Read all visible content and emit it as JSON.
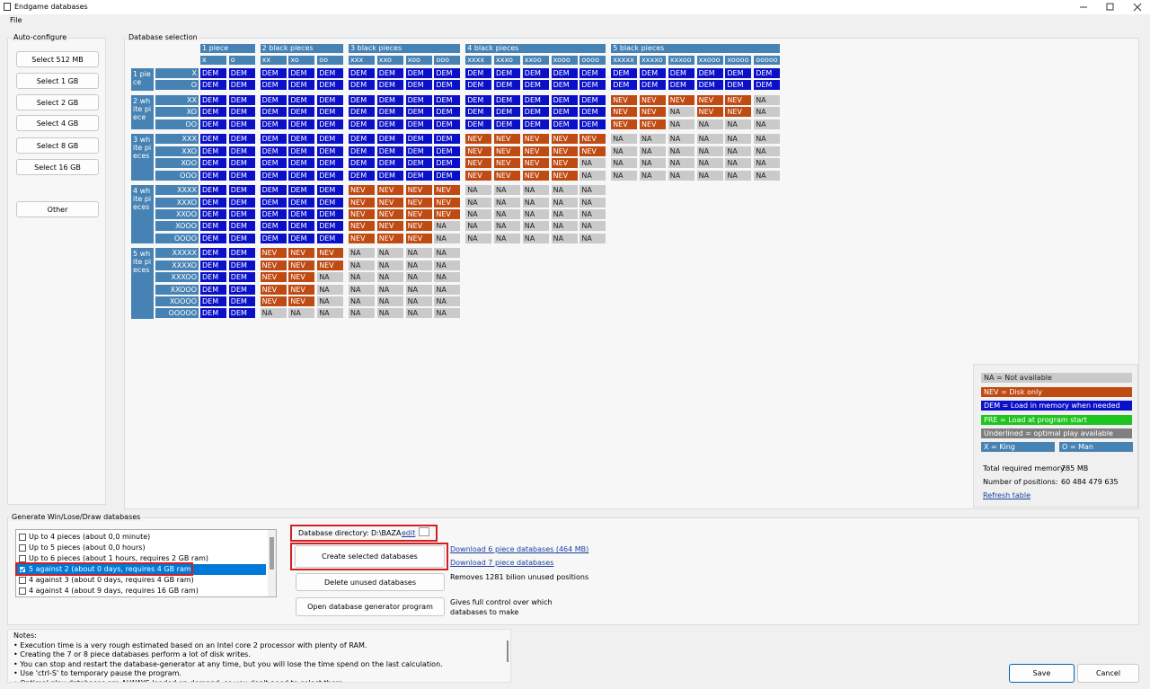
{
  "window": {
    "title": "Endgame databases"
  },
  "menu": [
    "File"
  ],
  "auto_configure": {
    "title": "Auto-configure",
    "buttons": [
      "Select 512 MB",
      "Select 1 GB",
      "Select 2 GB",
      "Select 4 GB",
      "Select 8 GB",
      "Select 16 GB",
      "Other"
    ]
  },
  "database_selection": {
    "title": "Database selection",
    "column_groups": [
      {
        "label": "1 piece",
        "columns": [
          "x",
          "o"
        ]
      },
      {
        "label": "2 black pieces",
        "columns": [
          "xx",
          "xo",
          "oo"
        ]
      },
      {
        "label": "3 black pieces",
        "columns": [
          "xxx",
          "xxo",
          "xoo",
          "ooo"
        ]
      },
      {
        "label": "4 black pieces",
        "columns": [
          "xxxx",
          "xxxo",
          "xxoo",
          "xooo",
          "oooo"
        ]
      },
      {
        "label": "5 black pieces",
        "columns": [
          "xxxxx",
          "xxxxo",
          "xxxoo",
          "xxooo",
          "xoooo",
          "ooooo"
        ]
      }
    ],
    "row_groups": [
      {
        "label": "1 piece",
        "rows": [
          {
            "label": "X",
            "cells": [
              "DEM",
              "DEM",
              "DEM",
              "DEM",
              "DEM",
              "DEM",
              "DEM",
              "DEM",
              "DEM",
              "DEM",
              "DEM",
              "DEM",
              "DEM",
              "DEM",
              "DEM",
              "DEM",
              "DEM",
              "DEM",
              "DEM",
              "DEM"
            ]
          },
          {
            "label": "O",
            "cells": [
              "DEM",
              "DEM",
              "DEM",
              "DEM",
              "DEM",
              "DEM",
              "DEM",
              "DEM",
              "DEM",
              "DEM",
              "DEM",
              "DEM",
              "DEM",
              "DEM",
              "DEM",
              "DEM",
              "DEM",
              "DEM",
              "DEM",
              "DEM"
            ]
          }
        ]
      },
      {
        "label": "2 white piece",
        "rows": [
          {
            "label": "XX",
            "cells": [
              "DEM",
              "DEM",
              "DEM",
              "DEM",
              "DEM",
              "DEM",
              "DEM",
              "DEM",
              "DEM",
              "DEM",
              "DEM",
              "DEM",
              "DEM",
              "DEM",
              "NEV",
              "NEV",
              "NEV",
              "NEV",
              "NEV",
              "NA"
            ]
          },
          {
            "label": "XO",
            "cells": [
              "DEM",
              "DEM",
              "DEM",
              "DEM",
              "DEM",
              "DEM",
              "DEM",
              "DEM",
              "DEM",
              "DEM",
              "DEM",
              "DEM",
              "DEM",
              "DEM",
              "NEV",
              "NEV",
              "NA",
              "NEV",
              "NEV",
              "NA"
            ]
          },
          {
            "label": "OO",
            "cells": [
              "DEM",
              "DEM",
              "DEM",
              "DEM",
              "DEM",
              "DEM",
              "DEM",
              "DEM",
              "DEM",
              "DEM",
              "DEM",
              "DEM",
              "DEM",
              "DEM",
              "NEV",
              "NEV",
              "NA",
              "NA",
              "NA",
              "NA"
            ]
          }
        ]
      },
      {
        "label": "3 white pieces",
        "rows": [
          {
            "label": "XXX",
            "cells": [
              "DEM",
              "DEM",
              "DEM",
              "DEM",
              "DEM",
              "DEM",
              "DEM",
              "DEM",
              "DEM",
              "NEV",
              "NEV",
              "NEV",
              "NEV",
              "NEV",
              "NA",
              "NA",
              "NA",
              "NA",
              "NA",
              "NA"
            ]
          },
          {
            "label": "XXO",
            "cells": [
              "DEM",
              "DEM",
              "DEM",
              "DEM",
              "DEM",
              "DEM",
              "DEM",
              "DEM",
              "DEM",
              "NEV",
              "NEV",
              "NEV",
              "NEV",
              "NEV",
              "NA",
              "NA",
              "NA",
              "NA",
              "NA",
              "NA"
            ]
          },
          {
            "label": "XOO",
            "cells": [
              "DEM",
              "DEM",
              "DEM",
              "DEM",
              "DEM",
              "DEM",
              "DEM",
              "DEM",
              "DEM",
              "NEV",
              "NEV",
              "NEV",
              "NEV",
              "NA",
              "NA",
              "NA",
              "NA",
              "NA",
              "NA",
              "NA"
            ]
          },
          {
            "label": "OOO",
            "cells": [
              "DEM",
              "DEM",
              "DEM",
              "DEM",
              "DEM",
              "DEM",
              "DEM",
              "DEM",
              "DEM",
              "NEV",
              "NEV",
              "NEV",
              "NEV",
              "NA",
              "NA",
              "NA",
              "NA",
              "NA",
              "NA",
              "NA"
            ]
          }
        ]
      },
      {
        "label": "4 white pieces",
        "rows": [
          {
            "label": "XXXX",
            "cells": [
              "DEM",
              "DEM",
              "DEM",
              "DEM",
              "DEM",
              "NEV",
              "NEV",
              "NEV",
              "NEV",
              "NA",
              "NA",
              "NA",
              "NA",
              "NA"
            ]
          },
          {
            "label": "XXXO",
            "cells": [
              "DEM",
              "DEM",
              "DEM",
              "DEM",
              "DEM",
              "NEV",
              "NEV",
              "NEV",
              "NEV",
              "NA",
              "NA",
              "NA",
              "NA",
              "NA"
            ]
          },
          {
            "label": "XXOO",
            "cells": [
              "DEM",
              "DEM",
              "DEM",
              "DEM",
              "DEM",
              "NEV",
              "NEV",
              "NEV",
              "NEV",
              "NA",
              "NA",
              "NA",
              "NA",
              "NA"
            ]
          },
          {
            "label": "XOOO",
            "cells": [
              "DEM",
              "DEM",
              "DEM",
              "DEM",
              "DEM",
              "NEV",
              "NEV",
              "NEV",
              "NA",
              "NA",
              "NA",
              "NA",
              "NA",
              "NA"
            ]
          },
          {
            "label": "OOOO",
            "cells": [
              "DEM",
              "DEM",
              "DEM",
              "DEM",
              "DEM",
              "NEV",
              "NEV",
              "NEV",
              "NA",
              "NA",
              "NA",
              "NA",
              "NA",
              "NA"
            ]
          }
        ]
      },
      {
        "label": "5 white pieces",
        "rows": [
          {
            "label": "XXXXX",
            "cells": [
              "DEM",
              "DEM",
              "NEV",
              "NEV",
              "NEV",
              "NA",
              "NA",
              "NA",
              "NA"
            ]
          },
          {
            "label": "XXXXO",
            "cells": [
              "DEM",
              "DEM",
              "NEV",
              "NEV",
              "NEV",
              "NA",
              "NA",
              "NA",
              "NA"
            ]
          },
          {
            "label": "XXXOO",
            "cells": [
              "DEM",
              "DEM",
              "NEV",
              "NEV",
              "NA",
              "NA",
              "NA",
              "NA",
              "NA"
            ]
          },
          {
            "label": "XXOOO",
            "cells": [
              "DEM",
              "DEM",
              "NEV",
              "NEV",
              "NA",
              "NA",
              "NA",
              "NA",
              "NA"
            ]
          },
          {
            "label": "XOOOO",
            "cells": [
              "DEM",
              "DEM",
              "NEV",
              "NEV",
              "NA",
              "NA",
              "NA",
              "NA",
              "NA"
            ]
          },
          {
            "label": "OOOOO",
            "cells": [
              "DEM",
              "DEM",
              "NA",
              "NA",
              "NA",
              "NA",
              "NA",
              "NA",
              "NA"
            ]
          }
        ]
      }
    ]
  },
  "legend": {
    "items": [
      {
        "label": "NA = Not available",
        "color": "#cacaca"
      },
      {
        "label": "NEV = Disk only",
        "color": "#bf4a12"
      },
      {
        "label": "DEM = Load in memory when needed",
        "color": "#0a10c8"
      },
      {
        "label": "PRE = Load at program start",
        "color": "#1fc41f"
      },
      {
        "label": "Underlined = optimal play available",
        "color": "#7f7f7f"
      }
    ],
    "pieces": [
      {
        "label": "X = King",
        "color": "#4682b4"
      },
      {
        "label": "O = Man",
        "color": "#4682b4"
      }
    ],
    "total_memory_label": "Total required memory:",
    "total_memory": "785 MB",
    "positions_label": "Number of positions:",
    "positions": "60 484 479 635",
    "refresh": "Refresh table"
  },
  "generate": {
    "title": "Generate Win/Lose/Draw databases",
    "items": [
      {
        "label": "Up to 4 pieces (about 0,0 minute)",
        "checked": false
      },
      {
        "label": "Up to 5 pieces (about 0,0 hours)",
        "checked": false
      },
      {
        "label": "Up to 6 pieces (about 1 hours, requires 2 GB ram)",
        "checked": false
      },
      {
        "label": "5 against 2 (about 0 days, requires 4 GB ram)",
        "checked": true
      },
      {
        "label": "4 against 3 (about 0 days, requires 4 GB ram)",
        "checked": false
      },
      {
        "label": "4 against 4 (about 9 days, requires 16 GB ram)",
        "checked": false
      }
    ],
    "selected": 3,
    "directory_label": "Database directory:",
    "directory": "D:\\BAZA",
    "edit": "edit",
    "create": "Create selected databases",
    "delete": "Delete unused databases",
    "open": "Open database generator program",
    "download6": "Download 6 piece databases (464 MB)",
    "download7": "Download 7 piece databases",
    "delete_note": "Removes 1281 bilion unused positions",
    "open_note": "Gives full control over which databases to make"
  },
  "notes": {
    "title": "Notes:",
    "lines": [
      "• Execution time is a very rough estimated based on an Intel core 2 processor with plenty of RAM.",
      "• Creating the 7 or 8 piece databases perform a lot of disk writes.",
      "• You can stop and restart the database-generator at any time, but you will lose the time spend on the last calculation.",
      "• Use 'ctrl-S' to temporary pause the program.",
      "• Optimal play databases are ALWAYS loaded on demand, so you don't need to select them."
    ]
  },
  "footer": {
    "save": "Save",
    "cancel": "Cancel"
  }
}
